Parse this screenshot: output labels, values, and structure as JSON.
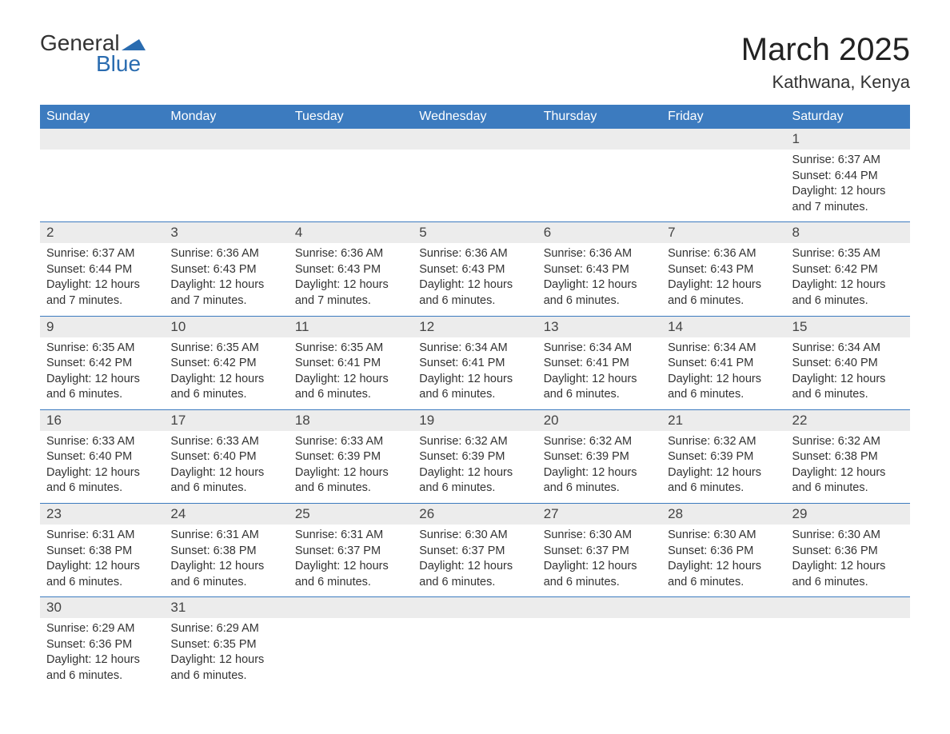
{
  "logo": {
    "text_general": "General",
    "text_blue": "Blue"
  },
  "title": {
    "month": "March 2025",
    "location": "Kathwana, Kenya"
  },
  "colors": {
    "header_bg": "#3c7bbf",
    "header_text": "#ffffff",
    "day_number_bg": "#ececec",
    "row_divider": "#3c7bbf",
    "logo_blue": "#2a6cb0"
  },
  "weekdays": [
    "Sunday",
    "Monday",
    "Tuesday",
    "Wednesday",
    "Thursday",
    "Friday",
    "Saturday"
  ],
  "weeks": [
    [
      {
        "day": "",
        "sunrise": "",
        "sunset": "",
        "daylight": ""
      },
      {
        "day": "",
        "sunrise": "",
        "sunset": "",
        "daylight": ""
      },
      {
        "day": "",
        "sunrise": "",
        "sunset": "",
        "daylight": ""
      },
      {
        "day": "",
        "sunrise": "",
        "sunset": "",
        "daylight": ""
      },
      {
        "day": "",
        "sunrise": "",
        "sunset": "",
        "daylight": ""
      },
      {
        "day": "",
        "sunrise": "",
        "sunset": "",
        "daylight": ""
      },
      {
        "day": "1",
        "sunrise": "Sunrise: 6:37 AM",
        "sunset": "Sunset: 6:44 PM",
        "daylight": "Daylight: 12 hours and 7 minutes."
      }
    ],
    [
      {
        "day": "2",
        "sunrise": "Sunrise: 6:37 AM",
        "sunset": "Sunset: 6:44 PM",
        "daylight": "Daylight: 12 hours and 7 minutes."
      },
      {
        "day": "3",
        "sunrise": "Sunrise: 6:36 AM",
        "sunset": "Sunset: 6:43 PM",
        "daylight": "Daylight: 12 hours and 7 minutes."
      },
      {
        "day": "4",
        "sunrise": "Sunrise: 6:36 AM",
        "sunset": "Sunset: 6:43 PM",
        "daylight": "Daylight: 12 hours and 7 minutes."
      },
      {
        "day": "5",
        "sunrise": "Sunrise: 6:36 AM",
        "sunset": "Sunset: 6:43 PM",
        "daylight": "Daylight: 12 hours and 6 minutes."
      },
      {
        "day": "6",
        "sunrise": "Sunrise: 6:36 AM",
        "sunset": "Sunset: 6:43 PM",
        "daylight": "Daylight: 12 hours and 6 minutes."
      },
      {
        "day": "7",
        "sunrise": "Sunrise: 6:36 AM",
        "sunset": "Sunset: 6:43 PM",
        "daylight": "Daylight: 12 hours and 6 minutes."
      },
      {
        "day": "8",
        "sunrise": "Sunrise: 6:35 AM",
        "sunset": "Sunset: 6:42 PM",
        "daylight": "Daylight: 12 hours and 6 minutes."
      }
    ],
    [
      {
        "day": "9",
        "sunrise": "Sunrise: 6:35 AM",
        "sunset": "Sunset: 6:42 PM",
        "daylight": "Daylight: 12 hours and 6 minutes."
      },
      {
        "day": "10",
        "sunrise": "Sunrise: 6:35 AM",
        "sunset": "Sunset: 6:42 PM",
        "daylight": "Daylight: 12 hours and 6 minutes."
      },
      {
        "day": "11",
        "sunrise": "Sunrise: 6:35 AM",
        "sunset": "Sunset: 6:41 PM",
        "daylight": "Daylight: 12 hours and 6 minutes."
      },
      {
        "day": "12",
        "sunrise": "Sunrise: 6:34 AM",
        "sunset": "Sunset: 6:41 PM",
        "daylight": "Daylight: 12 hours and 6 minutes."
      },
      {
        "day": "13",
        "sunrise": "Sunrise: 6:34 AM",
        "sunset": "Sunset: 6:41 PM",
        "daylight": "Daylight: 12 hours and 6 minutes."
      },
      {
        "day": "14",
        "sunrise": "Sunrise: 6:34 AM",
        "sunset": "Sunset: 6:41 PM",
        "daylight": "Daylight: 12 hours and 6 minutes."
      },
      {
        "day": "15",
        "sunrise": "Sunrise: 6:34 AM",
        "sunset": "Sunset: 6:40 PM",
        "daylight": "Daylight: 12 hours and 6 minutes."
      }
    ],
    [
      {
        "day": "16",
        "sunrise": "Sunrise: 6:33 AM",
        "sunset": "Sunset: 6:40 PM",
        "daylight": "Daylight: 12 hours and 6 minutes."
      },
      {
        "day": "17",
        "sunrise": "Sunrise: 6:33 AM",
        "sunset": "Sunset: 6:40 PM",
        "daylight": "Daylight: 12 hours and 6 minutes."
      },
      {
        "day": "18",
        "sunrise": "Sunrise: 6:33 AM",
        "sunset": "Sunset: 6:39 PM",
        "daylight": "Daylight: 12 hours and 6 minutes."
      },
      {
        "day": "19",
        "sunrise": "Sunrise: 6:32 AM",
        "sunset": "Sunset: 6:39 PM",
        "daylight": "Daylight: 12 hours and 6 minutes."
      },
      {
        "day": "20",
        "sunrise": "Sunrise: 6:32 AM",
        "sunset": "Sunset: 6:39 PM",
        "daylight": "Daylight: 12 hours and 6 minutes."
      },
      {
        "day": "21",
        "sunrise": "Sunrise: 6:32 AM",
        "sunset": "Sunset: 6:39 PM",
        "daylight": "Daylight: 12 hours and 6 minutes."
      },
      {
        "day": "22",
        "sunrise": "Sunrise: 6:32 AM",
        "sunset": "Sunset: 6:38 PM",
        "daylight": "Daylight: 12 hours and 6 minutes."
      }
    ],
    [
      {
        "day": "23",
        "sunrise": "Sunrise: 6:31 AM",
        "sunset": "Sunset: 6:38 PM",
        "daylight": "Daylight: 12 hours and 6 minutes."
      },
      {
        "day": "24",
        "sunrise": "Sunrise: 6:31 AM",
        "sunset": "Sunset: 6:38 PM",
        "daylight": "Daylight: 12 hours and 6 minutes."
      },
      {
        "day": "25",
        "sunrise": "Sunrise: 6:31 AM",
        "sunset": "Sunset: 6:37 PM",
        "daylight": "Daylight: 12 hours and 6 minutes."
      },
      {
        "day": "26",
        "sunrise": "Sunrise: 6:30 AM",
        "sunset": "Sunset: 6:37 PM",
        "daylight": "Daylight: 12 hours and 6 minutes."
      },
      {
        "day": "27",
        "sunrise": "Sunrise: 6:30 AM",
        "sunset": "Sunset: 6:37 PM",
        "daylight": "Daylight: 12 hours and 6 minutes."
      },
      {
        "day": "28",
        "sunrise": "Sunrise: 6:30 AM",
        "sunset": "Sunset: 6:36 PM",
        "daylight": "Daylight: 12 hours and 6 minutes."
      },
      {
        "day": "29",
        "sunrise": "Sunrise: 6:30 AM",
        "sunset": "Sunset: 6:36 PM",
        "daylight": "Daylight: 12 hours and 6 minutes."
      }
    ],
    [
      {
        "day": "30",
        "sunrise": "Sunrise: 6:29 AM",
        "sunset": "Sunset: 6:36 PM",
        "daylight": "Daylight: 12 hours and 6 minutes."
      },
      {
        "day": "31",
        "sunrise": "Sunrise: 6:29 AM",
        "sunset": "Sunset: 6:35 PM",
        "daylight": "Daylight: 12 hours and 6 minutes."
      },
      {
        "day": "",
        "sunrise": "",
        "sunset": "",
        "daylight": ""
      },
      {
        "day": "",
        "sunrise": "",
        "sunset": "",
        "daylight": ""
      },
      {
        "day": "",
        "sunrise": "",
        "sunset": "",
        "daylight": ""
      },
      {
        "day": "",
        "sunrise": "",
        "sunset": "",
        "daylight": ""
      },
      {
        "day": "",
        "sunrise": "",
        "sunset": "",
        "daylight": ""
      }
    ]
  ]
}
